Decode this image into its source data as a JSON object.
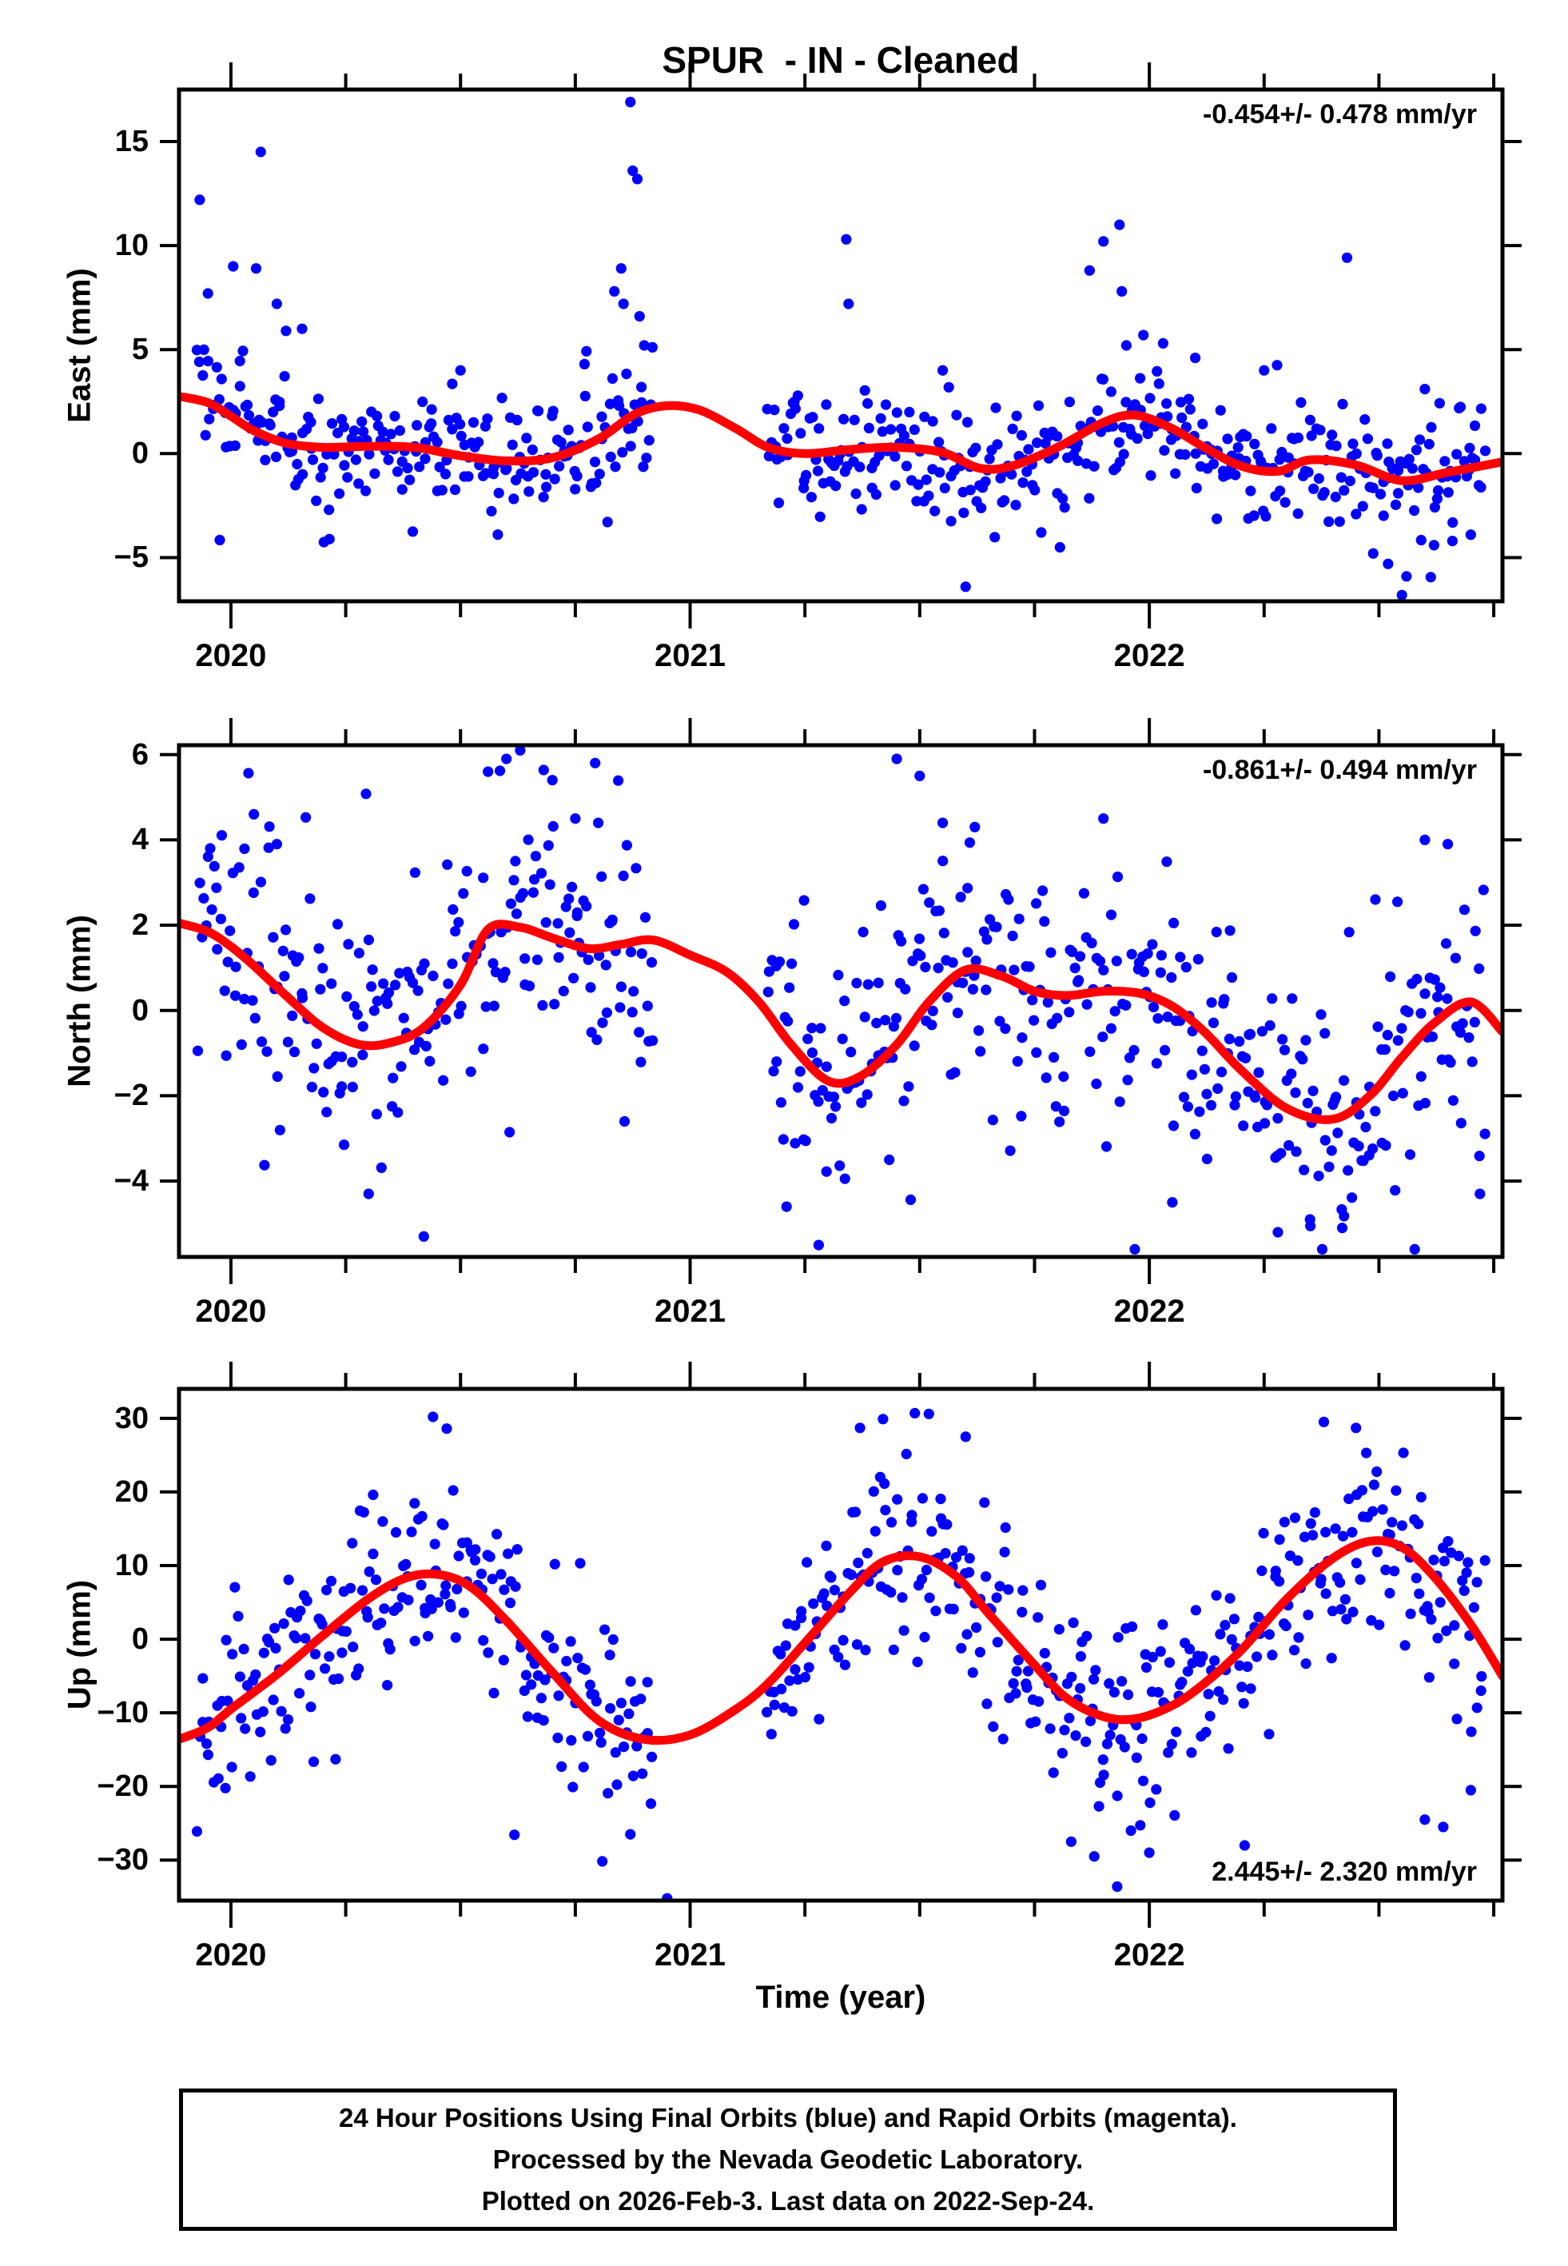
{
  "title": "SPUR  - IN - Cleaned",
  "colors": {
    "scatter_dot": "#0000ff",
    "model_line": "#ff0000",
    "frame": "#000000",
    "background": "#ffffff"
  },
  "xaxis": {
    "label": "Time (year)",
    "range": [
      2019.887,
      2022.769
    ],
    "major_ticks": [
      2020,
      2021,
      2022
    ],
    "minor_tick_step": 0.25,
    "data_span": [
      2019.925,
      2022.732
    ],
    "data_gap": [
      2020.92,
      2021.165
    ]
  },
  "chart_data": [
    {
      "type": "scatter",
      "name": "east",
      "ylabel": "East (mm)",
      "rate_annotation": "-0.454+/- 0.478 mm/yr",
      "annotation_position": "top-right",
      "yrange": [
        -7.1,
        17.5
      ],
      "yticks": [
        -5,
        0,
        5,
        10,
        15
      ],
      "model_curve": {
        "x": [
          2019.887,
          2019.95,
          2020.0,
          2020.05,
          2020.12,
          2020.2,
          2020.3,
          2020.4,
          2020.5,
          2020.6,
          2020.7,
          2020.8,
          2020.88,
          2020.95,
          2021.02,
          2021.1,
          2021.17,
          2021.25,
          2021.35,
          2021.45,
          2021.55,
          2021.63,
          2021.7,
          2021.8,
          2021.9,
          2021.97,
          2022.05,
          2022.12,
          2022.2,
          2022.28,
          2022.35,
          2022.45,
          2022.55,
          2022.65,
          2022.769
        ],
        "y": [
          2.75,
          2.45,
          1.8,
          1.1,
          0.5,
          0.3,
          0.35,
          0.3,
          -0.1,
          -0.35,
          -0.2,
          0.7,
          1.9,
          2.3,
          2.1,
          1.2,
          0.3,
          0.0,
          0.2,
          0.3,
          0.05,
          -0.7,
          -0.6,
          0.3,
          1.5,
          1.85,
          1.2,
          0.3,
          -0.6,
          -0.85,
          -0.3,
          -0.55,
          -1.3,
          -0.9,
          -0.4
        ]
      },
      "scatter_style": {
        "n": 620,
        "sigma": 1.35,
        "seed": 11,
        "tail_prob": 0.05,
        "tail_mult": 2.3,
        "clamp": [
          -6.85,
          17.25
        ]
      },
      "outliers": [
        [
          2019.932,
          12.2
        ],
        [
          2019.95,
          7.7
        ],
        [
          2020.005,
          9.0
        ],
        [
          2020.055,
          8.9
        ],
        [
          2020.065,
          14.5
        ],
        [
          2020.1,
          7.2
        ],
        [
          2020.12,
          5.9
        ],
        [
          2020.155,
          6.0
        ],
        [
          2020.5,
          4.0
        ],
        [
          2020.77,
          4.3
        ],
        [
          2020.835,
          7.8
        ],
        [
          2020.85,
          8.9
        ],
        [
          2020.855,
          7.2
        ],
        [
          2020.87,
          16.9
        ],
        [
          2020.875,
          13.6
        ],
        [
          2020.885,
          13.2
        ],
        [
          2020.89,
          6.6
        ],
        [
          2020.9,
          5.2
        ],
        [
          2021.34,
          10.3
        ],
        [
          2021.345,
          7.2
        ],
        [
          2021.55,
          4.0
        ],
        [
          2021.6,
          -6.4
        ],
        [
          2021.87,
          8.8
        ],
        [
          2021.9,
          10.2
        ],
        [
          2021.935,
          11.0
        ],
        [
          2021.94,
          7.8
        ],
        [
          2021.95,
          5.2
        ],
        [
          2022.03,
          5.3
        ],
        [
          2022.1,
          4.6
        ],
        [
          2022.25,
          4.0
        ],
        [
          2022.52,
          -5.3
        ],
        [
          2022.55,
          -6.8
        ],
        [
          2022.56,
          -5.9
        ],
        [
          2022.6,
          3.1
        ],
        [
          2022.62,
          -4.4
        ],
        [
          2022.66,
          -4.2
        ],
        [
          2022.7,
          -3.9
        ]
      ]
    },
    {
      "type": "scatter",
      "name": "north",
      "ylabel": "North (mm)",
      "rate_annotation": "-0.861+/- 0.494 mm/yr",
      "annotation_position": "top-right",
      "yrange": [
        -5.78,
        6.22
      ],
      "yticks": [
        -4,
        -2,
        0,
        2,
        4,
        6
      ],
      "model_curve": {
        "x": [
          2019.887,
          2019.95,
          2020.0,
          2020.05,
          2020.12,
          2020.2,
          2020.28,
          2020.35,
          2020.42,
          2020.5,
          2020.56,
          2020.63,
          2020.7,
          2020.78,
          2020.85,
          2020.92,
          2021.0,
          2021.08,
          2021.15,
          2021.22,
          2021.3,
          2021.37,
          2021.45,
          2021.52,
          2021.6,
          2021.68,
          2021.75,
          2021.82,
          2021.9,
          2021.98,
          2022.05,
          2022.12,
          2022.2,
          2022.3,
          2022.4,
          2022.48,
          2022.55,
          2022.62,
          2022.7,
          2022.769
        ],
        "y": [
          2.05,
          1.85,
          1.5,
          1.05,
          0.35,
          -0.4,
          -0.8,
          -0.75,
          -0.4,
          0.6,
          1.9,
          1.95,
          1.7,
          1.45,
          1.55,
          1.65,
          1.3,
          0.9,
          0.2,
          -0.8,
          -1.65,
          -1.55,
          -0.8,
          0.2,
          0.95,
          0.8,
          0.45,
          0.35,
          0.45,
          0.4,
          0.1,
          -0.5,
          -1.4,
          -2.3,
          -2.55,
          -2.0,
          -1.1,
          -0.3,
          0.2,
          -0.5
        ]
      },
      "scatter_style": {
        "n": 620,
        "sigma": 1.55,
        "seed": 22,
        "tail_prob": 0.05,
        "tail_mult": 2.0,
        "clamp": [
          -5.6,
          6.05
        ]
      },
      "outliers": [
        [
          2020.05,
          4.6
        ],
        [
          2020.1,
          3.9
        ],
        [
          2020.3,
          -4.3
        ],
        [
          2020.42,
          -5.3
        ],
        [
          2020.56,
          5.6
        ],
        [
          2020.6,
          5.9
        ],
        [
          2020.63,
          6.1
        ],
        [
          2020.7,
          5.4
        ],
        [
          2020.75,
          4.5
        ],
        [
          2020.8,
          4.4
        ],
        [
          2021.21,
          -4.6
        ],
        [
          2021.28,
          -5.5
        ],
        [
          2021.45,
          5.9
        ],
        [
          2021.5,
          5.5
        ],
        [
          2021.55,
          4.4
        ],
        [
          2021.62,
          4.3
        ],
        [
          2021.9,
          4.5
        ],
        [
          2022.05,
          -4.5
        ],
        [
          2022.28,
          -5.2
        ],
        [
          2022.35,
          -4.9
        ],
        [
          2022.42,
          -5.1
        ],
        [
          2022.6,
          4.0
        ],
        [
          2022.65,
          3.9
        ],
        [
          2022.72,
          -4.3
        ]
      ]
    },
    {
      "type": "scatter",
      "name": "up",
      "ylabel": "Up (mm)",
      "rate_annotation": "2.445+/- 2.320 mm/yr",
      "annotation_position": "bottom-right",
      "yrange": [
        -35.5,
        34.0
      ],
      "yticks": [
        -30,
        -20,
        -10,
        0,
        10,
        20,
        30
      ],
      "model_curve": {
        "x": [
          2019.887,
          2019.95,
          2020.0,
          2020.1,
          2020.2,
          2020.3,
          2020.38,
          2020.45,
          2020.52,
          2020.6,
          2020.7,
          2020.8,
          2020.9,
          2021.0,
          2021.1,
          2021.17,
          2021.25,
          2021.35,
          2021.42,
          2021.5,
          2021.58,
          2021.65,
          2021.75,
          2021.82,
          2021.9,
          2021.97,
          2022.05,
          2022.12,
          2022.2,
          2022.3,
          2022.4,
          2022.48,
          2022.55,
          2022.62,
          2022.7,
          2022.769
        ],
        "y": [
          -13.6,
          -12.0,
          -9.5,
          -4.8,
          0.5,
          5.5,
          8.3,
          8.8,
          7.2,
          2.5,
          -4.5,
          -11.0,
          -13.6,
          -13.0,
          -9.5,
          -6.0,
          -0.5,
          6.5,
          10.5,
          11.2,
          8.5,
          3.5,
          -3.5,
          -8.0,
          -10.5,
          -10.8,
          -9.0,
          -6.0,
          -1.5,
          5.5,
          11.0,
          13.3,
          12.5,
          8.5,
          2.0,
          -5.0
        ]
      },
      "scatter_style": {
        "n": 620,
        "sigma": 6.8,
        "seed": 33,
        "tail_prob": 0.05,
        "tail_mult": 1.8,
        "clamp": [
          -35.0,
          33.5
        ]
      },
      "outliers": [
        [
          2020.44,
          30.2
        ],
        [
          2020.47,
          28.6
        ],
        [
          2020.87,
          -26.5
        ],
        [
          2020.95,
          -35.2
        ],
        [
          2021.37,
          28.7
        ],
        [
          2021.42,
          29.9
        ],
        [
          2021.52,
          30.6
        ],
        [
          2021.6,
          27.5
        ],
        [
          2021.83,
          -27.5
        ],
        [
          2021.88,
          -29.5
        ],
        [
          2021.93,
          -33.6
        ],
        [
          2021.96,
          -26.0
        ],
        [
          2022.0,
          -29.0
        ],
        [
          2022.38,
          29.5
        ],
        [
          2022.45,
          28.7
        ],
        [
          2022.6,
          -24.5
        ],
        [
          2022.64,
          -25.5
        ],
        [
          2022.7,
          -20.5
        ]
      ]
    }
  ],
  "footer": {
    "lines": [
      "24 Hour Positions Using Final Orbits (blue) and Rapid Orbits (magenta).",
      "Processed by the Nevada Geodetic Laboratory.",
      "Plotted on 2026-Feb-3. Last data on 2022-Sep-24."
    ]
  }
}
